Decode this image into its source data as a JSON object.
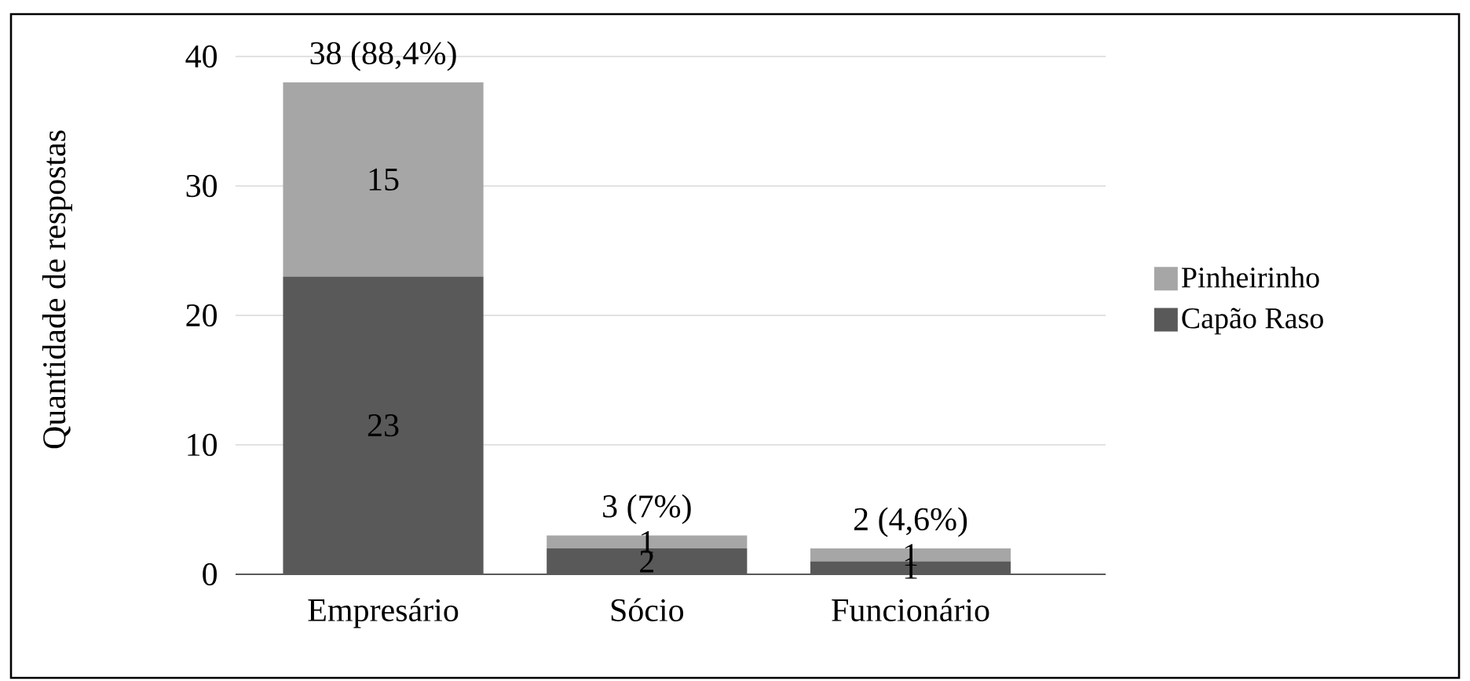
{
  "chart_data": {
    "type": "bar",
    "ylabel": "Quantidade de respostas",
    "categories": [
      "Empresário",
      "Sócio",
      "Funcionário"
    ],
    "stacked": true,
    "series": [
      {
        "name": "Capão Raso",
        "color": "#595959",
        "values": [
          23,
          2,
          1
        ]
      },
      {
        "name": "Pinheirinho",
        "color": "#a6a6a6",
        "values": [
          15,
          1,
          1
        ]
      }
    ],
    "totals": [
      "38 (88,4%)",
      "3 (7%)",
      "2 (4,6%)"
    ],
    "data_labels": true,
    "ylim": [
      0,
      40
    ],
    "yticks": [
      0,
      10,
      20,
      30,
      40
    ],
    "grid": "y",
    "legend": "right"
  }
}
